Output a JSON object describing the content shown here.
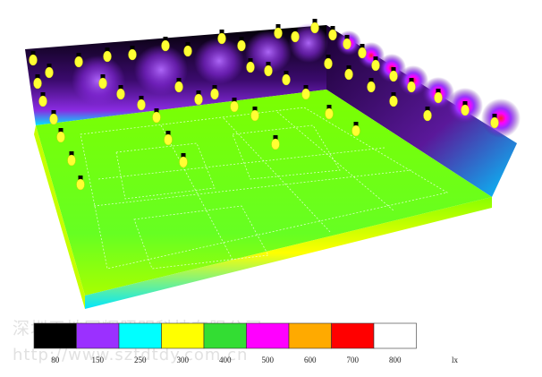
{
  "watermark": {
    "company": "深圳天地同辉照明科技有限公司",
    "url": "http://www.sztdtdy.com.cn"
  },
  "legend": {
    "unit": "lx",
    "colors": [
      "#000000",
      "#9b30ff",
      "#00ffff",
      "#ffff00",
      "#33dd33",
      "#ff00ff",
      "#ffaa00",
      "#ff0000",
      "#ffffff"
    ],
    "labels": [
      "80",
      "150",
      "250",
      "300",
      "400",
      "500",
      "600",
      "700",
      "800"
    ]
  },
  "palette": {
    "floor": "#7cff00",
    "floor_edge_yellow": "#ffff00",
    "floor_edge_cyan": "#00e5ff",
    "wall_dark": "#000000",
    "wall_purple": "#8a2be2",
    "lamp_yellow": "#ffff33",
    "lamp_cap": "#000000"
  }
}
